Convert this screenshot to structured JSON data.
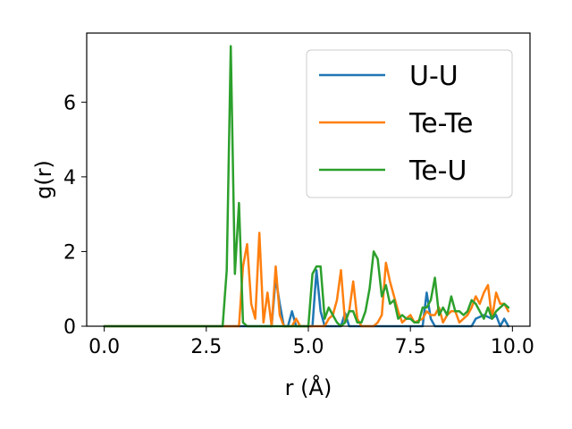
{
  "chart_data": {
    "type": "line",
    "xlabel": "r (Å)",
    "ylabel": "g(r)",
    "xlim": [
      -0.43,
      10.43
    ],
    "ylim": [
      0,
      7.85
    ],
    "xticks": [
      0.0,
      2.5,
      5.0,
      7.5,
      10.0
    ],
    "xtick_labels": [
      "0.0",
      "2.5",
      "5.0",
      "7.5",
      "10.0"
    ],
    "yticks": [
      0,
      2,
      4,
      6
    ],
    "ytick_labels": [
      "0",
      "2",
      "4",
      "6"
    ],
    "legend_position": "top-right",
    "grid": false,
    "series": [
      {
        "name": "U-U",
        "color": "#1f77b4",
        "x": [
          0.0,
          3.5,
          4.1,
          4.2,
          4.3,
          4.4,
          4.5,
          4.6,
          4.7,
          4.8,
          5.1,
          5.2,
          5.3,
          5.4,
          5.6,
          5.8,
          5.9,
          6.0,
          6.1,
          6.2,
          6.6,
          6.9,
          7.1,
          7.3,
          7.8,
          7.9,
          8.0,
          8.1,
          8.3,
          8.6,
          8.8,
          9.0,
          9.1,
          9.3,
          9.5,
          9.6,
          9.7,
          9.8,
          9.9
        ],
        "y": [
          0,
          0,
          0,
          1.3,
          0.6,
          0,
          0,
          0.4,
          0,
          0,
          0,
          1.5,
          0.4,
          0,
          0,
          0,
          0.35,
          0,
          0,
          0,
          0,
          0,
          0,
          0,
          0,
          0.9,
          0.2,
          0,
          0,
          0,
          0,
          0,
          0.2,
          0.3,
          0.2,
          0.3,
          0,
          0.2,
          0
        ]
      },
      {
        "name": "Te-Te",
        "color": "#ff7f0e",
        "x": [
          0.0,
          3.3,
          3.4,
          3.5,
          3.6,
          3.7,
          3.8,
          3.9,
          4.0,
          4.1,
          4.2,
          4.3,
          4.4,
          4.5,
          4.6,
          4.7,
          4.8,
          5.0,
          5.2,
          5.4,
          5.5,
          5.6,
          5.7,
          5.8,
          5.9,
          6.0,
          6.1,
          6.2,
          6.3,
          6.5,
          6.6,
          6.7,
          6.8,
          6.9,
          7.0,
          7.1,
          7.2,
          7.3,
          7.4,
          7.5,
          7.6,
          7.8,
          7.9,
          8.0,
          8.1,
          8.2,
          8.3,
          8.4,
          8.5,
          8.6,
          8.7,
          8.8,
          8.9,
          9.0,
          9.1,
          9.2,
          9.3,
          9.4,
          9.5,
          9.6,
          9.7,
          9.8,
          9.9
        ],
        "y": [
          0,
          0,
          1.6,
          2.2,
          0.6,
          0.2,
          2.5,
          0.1,
          0.9,
          0,
          1.6,
          0.3,
          0,
          0,
          0,
          0.2,
          0,
          0,
          0,
          0,
          0.2,
          0.3,
          0.7,
          1.5,
          0.1,
          0.4,
          1.2,
          0.2,
          0,
          0,
          0,
          0.1,
          0.3,
          1.7,
          1.2,
          0.8,
          0.4,
          0.1,
          0.2,
          0.3,
          0.1,
          0.2,
          0.4,
          0.3,
          0.3,
          0.5,
          0.1,
          0.3,
          0.4,
          0.4,
          0.1,
          0.2,
          0.3,
          0.5,
          0.8,
          0.6,
          0.9,
          1.1,
          0.2,
          0.9,
          0.6,
          0.6,
          0.4
        ]
      },
      {
        "name": "Te-U",
        "color": "#2ca02c",
        "x": [
          0.0,
          2.9,
          3.0,
          3.1,
          3.2,
          3.3,
          3.4,
          3.5,
          4.0,
          4.1,
          4.2,
          4.3,
          4.4,
          4.5,
          4.6,
          4.7,
          4.8,
          5.0,
          5.1,
          5.2,
          5.3,
          5.4,
          5.5,
          5.6,
          5.7,
          5.8,
          5.9,
          6.0,
          6.1,
          6.2,
          6.3,
          6.4,
          6.5,
          6.6,
          6.7,
          6.8,
          6.9,
          7.0,
          7.1,
          7.2,
          7.3,
          7.4,
          7.5,
          7.6,
          7.7,
          7.8,
          7.9,
          8.0,
          8.1,
          8.2,
          8.3,
          8.4,
          8.5,
          8.6,
          8.7,
          8.8,
          8.9,
          9.0,
          9.1,
          9.2,
          9.3,
          9.4,
          9.5,
          9.6,
          9.7,
          9.8,
          9.9
        ],
        "y": [
          0,
          0,
          1.5,
          7.5,
          1.4,
          3.3,
          0.1,
          0,
          0,
          0,
          0,
          0,
          0,
          0,
          0,
          0,
          0,
          0,
          1.4,
          1.6,
          1.6,
          0.2,
          0.5,
          0.3,
          0.1,
          0,
          0.1,
          0.4,
          0.4,
          0.1,
          0.1,
          0.4,
          1.0,
          2.0,
          1.8,
          0.8,
          1.1,
          0.6,
          0.7,
          0.2,
          0.3,
          0.2,
          0.2,
          0.1,
          0.1,
          0.5,
          0.5,
          0.7,
          1.3,
          0.3,
          0.5,
          0.3,
          0.8,
          0.4,
          0.4,
          0.3,
          0.4,
          0.7,
          0.6,
          0.4,
          0.2,
          0.5,
          0.2,
          0.4,
          0.5,
          0.6,
          0.5
        ]
      }
    ]
  }
}
